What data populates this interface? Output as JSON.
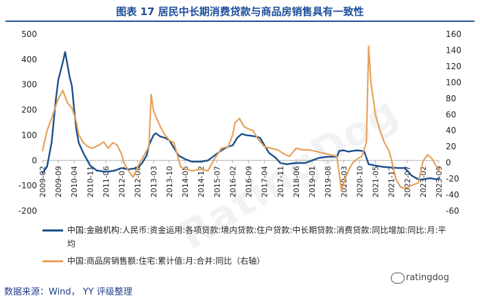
{
  "title": "图表 17 居民中长期消费贷款与商品房销售具有一致性",
  "source": "数据来源：Wind， YY 评级整理",
  "watermark": "ratingdog",
  "diagonal_watermark": "RatingDog",
  "chart_data": {
    "type": "line",
    "x_ticks": [
      "2009-02",
      "2009-09",
      "2010-04",
      "2010-11",
      "2011-06",
      "2012-01",
      "2012-08",
      "2013-03",
      "2013-10",
      "2014-05",
      "2014-12",
      "2015-07",
      "2016-02",
      "2016-09",
      "2017-04",
      "2017-11",
      "2018-06",
      "2019-01",
      "2019-08",
      "2020-03",
      "2020-10",
      "2021-05",
      "2021-12",
      "2022-07",
      "2023-02",
      "2023-09"
    ],
    "y_left": {
      "min": -200,
      "max": 500,
      "ticks": [
        500,
        400,
        300,
        200,
        100,
        0,
        -100,
        -200
      ]
    },
    "y_right": {
      "min": -60,
      "max": 160,
      "ticks": [
        160,
        140,
        120,
        100,
        80,
        60,
        40,
        20,
        0,
        -20,
        -40,
        -60
      ]
    },
    "grid": false,
    "legend_position": "bottom",
    "series": [
      {
        "name": "中国:金融机构:人民币:资金运用:各项贷款:境内贷款:住户贷款:中长期贷款:消费贷款:同比增加:同比:月:平均",
        "axis": "left",
        "color": "#1b4f8a",
        "points": [
          [
            "2009-02",
            -50
          ],
          [
            "2009-04",
            -25
          ],
          [
            "2009-06",
            70
          ],
          [
            "2009-08",
            250
          ],
          [
            "2009-09",
            320
          ],
          [
            "2009-11",
            390
          ],
          [
            "2009-12",
            430
          ],
          [
            "2010-01",
            380
          ],
          [
            "2010-02",
            330
          ],
          [
            "2010-03",
            295
          ],
          [
            "2010-04",
            200
          ],
          [
            "2010-05",
            120
          ],
          [
            "2010-06",
            70
          ],
          [
            "2010-08",
            30
          ],
          [
            "2010-11",
            -20
          ],
          [
            "2011-02",
            -40
          ],
          [
            "2011-06",
            -45
          ],
          [
            "2011-10",
            -40
          ],
          [
            "2012-01",
            -30
          ],
          [
            "2012-04",
            -35
          ],
          [
            "2012-08",
            -30
          ],
          [
            "2012-10",
            -10
          ],
          [
            "2012-12",
            20
          ],
          [
            "2013-01",
            60
          ],
          [
            "2013-03",
            100
          ],
          [
            "2013-04",
            108
          ],
          [
            "2013-06",
            95
          ],
          [
            "2013-08",
            90
          ],
          [
            "2013-10",
            80
          ],
          [
            "2013-12",
            50
          ],
          [
            "2014-02",
            20
          ],
          [
            "2014-05",
            5
          ],
          [
            "2014-08",
            -5
          ],
          [
            "2014-10",
            -5
          ],
          [
            "2014-12",
            -5
          ],
          [
            "2015-03",
            0
          ],
          [
            "2015-06",
            20
          ],
          [
            "2015-09",
            40
          ],
          [
            "2015-12",
            55
          ],
          [
            "2016-02",
            60
          ],
          [
            "2016-04",
            90
          ],
          [
            "2016-06",
            105
          ],
          [
            "2016-08",
            100
          ],
          [
            "2016-10",
            98
          ],
          [
            "2016-12",
            95
          ],
          [
            "2017-02",
            90
          ],
          [
            "2017-04",
            60
          ],
          [
            "2017-06",
            30
          ],
          [
            "2017-09",
            10
          ],
          [
            "2017-11",
            -10
          ],
          [
            "2018-02",
            -15
          ],
          [
            "2018-04",
            -12
          ],
          [
            "2018-06",
            -10
          ],
          [
            "2018-10",
            -10
          ],
          [
            "2019-01",
            0
          ],
          [
            "2019-04",
            10
          ],
          [
            "2019-08",
            15
          ],
          [
            "2019-12",
            15
          ],
          [
            "2020-01",
            38
          ],
          [
            "2020-03",
            40
          ],
          [
            "2020-05",
            35
          ],
          [
            "2020-07",
            38
          ],
          [
            "2020-09",
            40
          ],
          [
            "2020-11",
            38
          ],
          [
            "2020-12",
            37
          ],
          [
            "2021-02",
            -15
          ],
          [
            "2021-05",
            -20
          ],
          [
            "2021-08",
            -25
          ],
          [
            "2021-12",
            -28
          ],
          [
            "2022-03",
            -30
          ],
          [
            "2022-06",
            -30
          ],
          [
            "2022-09",
            -60
          ],
          [
            "2022-12",
            -75
          ],
          [
            "2023-02",
            -75
          ],
          [
            "2023-05",
            -70
          ],
          [
            "2023-08",
            -75
          ],
          [
            "2023-09",
            -70
          ]
        ]
      },
      {
        "name": "中国:商品房销售额:住宅:累计值:月:合并:同比（右轴）",
        "axis": "right",
        "color": "#e6a15a",
        "points": [
          [
            "2009-02",
            15
          ],
          [
            "2009-04",
            40
          ],
          [
            "2009-06",
            55
          ],
          [
            "2009-08",
            72
          ],
          [
            "2009-09",
            80
          ],
          [
            "2009-11",
            90
          ],
          [
            "2009-12",
            82
          ],
          [
            "2010-01",
            75
          ],
          [
            "2010-03",
            68
          ],
          [
            "2010-04",
            60
          ],
          [
            "2010-05",
            50
          ],
          [
            "2010-06",
            35
          ],
          [
            "2010-08",
            25
          ],
          [
            "2010-10",
            20
          ],
          [
            "2010-12",
            18
          ],
          [
            "2011-03",
            22
          ],
          [
            "2011-05",
            26
          ],
          [
            "2011-07",
            18
          ],
          [
            "2011-09",
            25
          ],
          [
            "2011-11",
            22
          ],
          [
            "2012-01",
            10
          ],
          [
            "2012-02",
            0
          ],
          [
            "2012-04",
            -10
          ],
          [
            "2012-06",
            -18
          ],
          [
            "2012-08",
            -5
          ],
          [
            "2012-10",
            5
          ],
          [
            "2012-12",
            15
          ],
          [
            "2013-01",
            20
          ],
          [
            "2013-02",
            85
          ],
          [
            "2013-03",
            65
          ],
          [
            "2013-04",
            58
          ],
          [
            "2013-06",
            45
          ],
          [
            "2013-08",
            35
          ],
          [
            "2013-10",
            28
          ],
          [
            "2013-12",
            25
          ],
          [
            "2014-03",
            -5
          ],
          [
            "2014-05",
            -8
          ],
          [
            "2014-08",
            -10
          ],
          [
            "2014-12",
            -8
          ],
          [
            "2015-03",
            -10
          ],
          [
            "2015-06",
            5
          ],
          [
            "2015-09",
            18
          ],
          [
            "2015-12",
            20
          ],
          [
            "2016-02",
            35
          ],
          [
            "2016-03",
            50
          ],
          [
            "2016-05",
            55
          ],
          [
            "2016-07",
            45
          ],
          [
            "2016-09",
            42
          ],
          [
            "2016-11",
            40
          ],
          [
            "2017-01",
            30
          ],
          [
            "2017-04",
            20
          ],
          [
            "2017-07",
            18
          ],
          [
            "2017-10",
            16
          ],
          [
            "2017-12",
            12
          ],
          [
            "2018-03",
            8
          ],
          [
            "2018-06",
            18
          ],
          [
            "2018-09",
            16
          ],
          [
            "2018-12",
            16
          ],
          [
            "2019-03",
            14
          ],
          [
            "2019-06",
            12
          ],
          [
            "2019-09",
            10
          ],
          [
            "2019-12",
            8
          ],
          [
            "2020-02",
            -35
          ],
          [
            "2020-03",
            -25
          ],
          [
            "2020-05",
            -10
          ],
          [
            "2020-07",
            0
          ],
          [
            "2020-09",
            5
          ],
          [
            "2020-11",
            8
          ],
          [
            "2021-01",
            25
          ],
          [
            "2021-02",
            145
          ],
          [
            "2021-03",
            100
          ],
          [
            "2021-04",
            80
          ],
          [
            "2021-05",
            60
          ],
          [
            "2021-07",
            40
          ],
          [
            "2021-09",
            25
          ],
          [
            "2021-11",
            15
          ],
          [
            "2021-12",
            5
          ],
          [
            "2022-02",
            -20
          ],
          [
            "2022-04",
            -30
          ],
          [
            "2022-06",
            -32
          ],
          [
            "2022-09",
            -28
          ],
          [
            "2022-12",
            -25
          ],
          [
            "2023-02",
            2
          ],
          [
            "2023-04",
            10
          ],
          [
            "2023-06",
            5
          ],
          [
            "2023-08",
            -5
          ],
          [
            "2023-09",
            -10
          ]
        ]
      }
    ]
  }
}
